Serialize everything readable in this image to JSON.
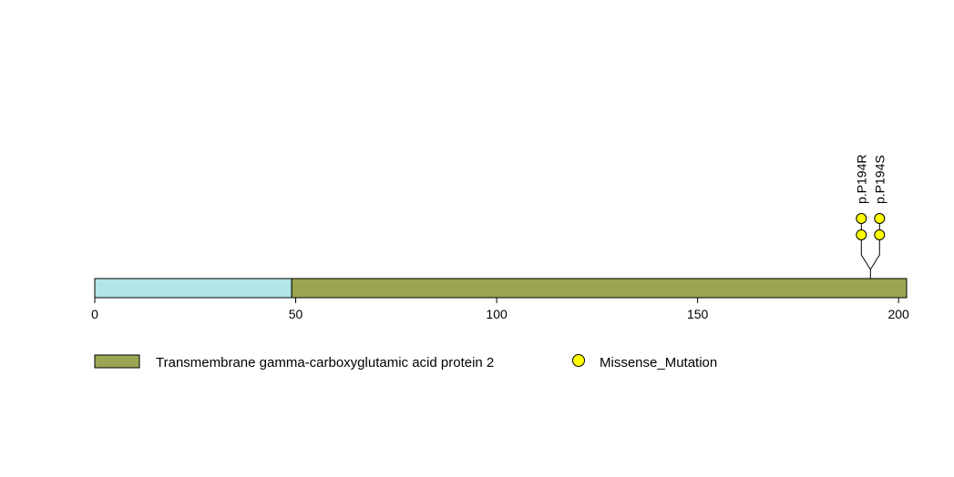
{
  "chart_data": {
    "type": "lollipop",
    "protein_length": 202,
    "xlim": [
      0,
      202
    ],
    "ticks": [
      0,
      50,
      100,
      150,
      200
    ],
    "tick_labels": [
      "0",
      "50",
      "100",
      "150",
      "200"
    ],
    "regions": [
      {
        "start": 0,
        "end": 49,
        "color": "#b2e5e5"
      },
      {
        "start": 49,
        "end": 202,
        "color": "#9ca552",
        "name": "Transmembrane gamma-carboxyglutamic acid protein 2"
      }
    ],
    "mutations": [
      {
        "label": "p.P194R",
        "position": 194,
        "count": 2,
        "type": "Missense_Mutation"
      },
      {
        "label": "p.P194S",
        "position": 194,
        "count": 2,
        "type": "Missense_Mutation"
      }
    ],
    "legend": [
      {
        "kind": "box",
        "label": "Transmembrane gamma-carboxyglutamic acid protein 2",
        "color": "#9ca552"
      },
      {
        "kind": "circle",
        "label": "Missense_Mutation",
        "color": "#ffff00"
      }
    ]
  }
}
